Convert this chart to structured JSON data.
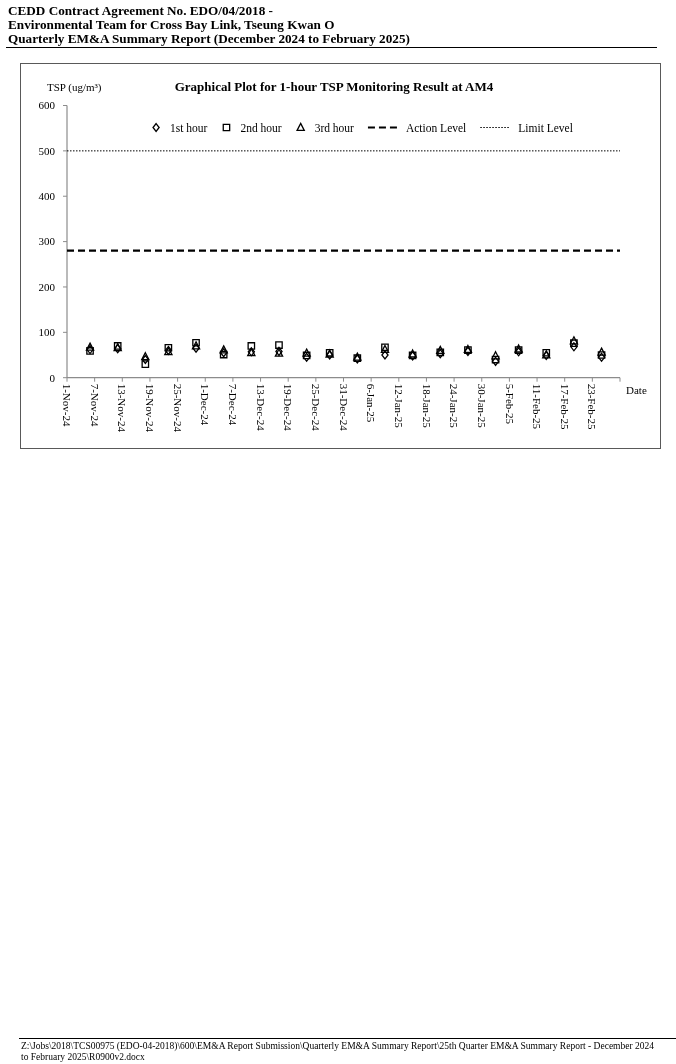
{
  "chart_data": {
    "type": "scatter",
    "title": "Graphical Plot for 1-hour TSP Monitoring Result at AM4",
    "ylabel": "TSP (ug/m³)",
    "xlabel": "Date",
    "annotations": [
      "CEDD Contract Agreement No. EDO/04/2018 -",
      "Environmental Team for Cross Bay Link, Tseung Kwan O",
      "Quarterly EM&A Summary Report (December 2024 to February 2025)",
      "Z:\\Jobs\\2018\\TCS00975 (EDO-04-2018)\\600\\EM&A Report Submission\\Quarterly EM&A Summary Report\\25th Quarter EM&A Summary Report - December 2024 to February 2025\\R0900v2.docx"
    ],
    "x": [
      "2024-11-06",
      "2024-11-12",
      "2024-11-18",
      "2024-11-23",
      "2024-11-29",
      "2024-12-05",
      "2024-12-11",
      "2024-12-17",
      "2024-12-23",
      "2024-12-28",
      "2025-01-03",
      "2025-01-09",
      "2025-01-15",
      "2025-01-21",
      "2025-01-27",
      "2025-02-02",
      "2025-02-07",
      "2025-02-13",
      "2025-02-19",
      "2025-02-25"
    ],
    "series": [
      {
        "name": "1st hour",
        "color": "#000000",
        "marker": "diamond",
        "values": [
          62,
          64,
          40,
          60,
          65,
          55,
          57,
          58,
          45,
          50,
          41,
          50,
          48,
          53,
          58,
          36,
          57,
          49,
          68,
          45
        ]
      },
      {
        "name": "2nd hour",
        "color": "#000000",
        "marker": "square",
        "values": [
          59,
          70,
          30,
          66,
          77,
          51,
          70,
          72,
          49,
          55,
          43,
          67,
          49,
          56,
          61,
          40,
          61,
          55,
          76,
          50
        ]
      },
      {
        "name": "3rd hour",
        "color": "#000000",
        "marker": "triangle",
        "values": [
          67,
          66,
          46,
          57,
          70,
          61,
          55,
          54,
          54,
          52,
          45,
          62,
          52,
          60,
          62,
          48,
          63,
          50,
          81,
          56
        ]
      }
    ],
    "xlim": [
      "2024-11-01",
      "2025-03-01"
    ],
    "xticks": [
      {
        "value": "2024-11-01",
        "label": "1-Nov-24"
      },
      {
        "value": "2024-11-07",
        "label": "7-Nov-24"
      },
      {
        "value": "2024-11-13",
        "label": "13-Nov-24"
      },
      {
        "value": "2024-11-19",
        "label": "19-Nov-24"
      },
      {
        "value": "2024-11-25",
        "label": "25-Nov-24"
      },
      {
        "value": "2024-12-01",
        "label": "1-Dec-24"
      },
      {
        "value": "2024-12-07",
        "label": "7-Dec-24"
      },
      {
        "value": "2024-12-13",
        "label": "13-Dec-24"
      },
      {
        "value": "2024-12-19",
        "label": "19-Dec-24"
      },
      {
        "value": "2024-12-25",
        "label": "25-Dec-24"
      },
      {
        "value": "2024-12-31",
        "label": "31-Dec-24"
      },
      {
        "value": "2025-01-06",
        "label": "6-Jan-25"
      },
      {
        "value": "2025-01-12",
        "label": "12-Jan-25"
      },
      {
        "value": "2025-01-18",
        "label": "18-Jan-25"
      },
      {
        "value": "2025-01-24",
        "label": "24-Jan-25"
      },
      {
        "value": "2025-01-30",
        "label": "30-Jan-25"
      },
      {
        "value": "2025-02-05",
        "label": "5-Feb-25"
      },
      {
        "value": "2025-02-11",
        "label": "11-Feb-25"
      },
      {
        "value": "2025-02-17",
        "label": "17-Feb-25"
      },
      {
        "value": "2025-02-23",
        "label": "23-Feb-25"
      },
      {
        "value": "2025-03-01",
        "label": null
      }
    ],
    "ylim": [
      0,
      600
    ],
    "yticks": [
      0,
      100,
      200,
      300,
      400,
      500,
      600
    ],
    "ref_lines": [
      {
        "axis": "y",
        "value": 280,
        "label": "Action Level",
        "color": "#000000",
        "line_style": "dashed"
      },
      {
        "axis": "y",
        "value": 500,
        "label": "Limit Level",
        "color": "#000000",
        "line_style": "dotted"
      }
    ],
    "legend": "top"
  }
}
